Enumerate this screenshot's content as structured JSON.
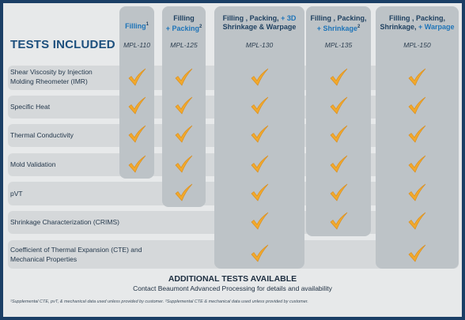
{
  "header": {
    "tests_included": "TESTS INCLUDED"
  },
  "columns": [
    {
      "plain": "Filling",
      "sup": "1",
      "accent": "",
      "accent2": "",
      "code": "MPL-110"
    },
    {
      "plain": "Filling",
      "accent": "+ Packing",
      "sup": "2",
      "accent2": "",
      "code": "MPL-125"
    },
    {
      "plain": "Filling , Packing,",
      "accent": "+ 3D",
      "plain2": "Shrinkage & Warpage",
      "code": "MPL-130"
    },
    {
      "plain": "Filling , Packing,",
      "accent": "+ Shrinkage",
      "sup": "2",
      "code": "MPL-135"
    },
    {
      "plain": "Filling , Packing,",
      "plain2": "Shrinkage,",
      "accent": "+ Warpage",
      "code": "MPL-150"
    }
  ],
  "rows": [
    {
      "label": "Shear Viscosity by Injection Molding Rheometer (IMR)"
    },
    {
      "label": "Specific Heat"
    },
    {
      "label": "Thermal Conductivity"
    },
    {
      "label": "Mold Validation"
    },
    {
      "label": "pVT"
    },
    {
      "label": "Shrinkage Characterization (CRIMS)"
    },
    {
      "label": "Coefficient of Thermal Expansion (CTE) and Mechanical Properties"
    }
  ],
  "checks": [
    [
      true,
      true,
      true,
      true,
      true
    ],
    [
      true,
      true,
      true,
      true,
      true
    ],
    [
      true,
      true,
      true,
      true,
      true
    ],
    [
      true,
      true,
      true,
      true,
      true
    ],
    [
      false,
      true,
      true,
      true,
      true
    ],
    [
      false,
      false,
      true,
      true,
      true
    ],
    [
      false,
      false,
      true,
      false,
      true
    ]
  ],
  "additional": {
    "title": "ADDITIONAL TESTS AVAILABLE",
    "subtitle": "Contact Beaumont Advanced Processing for details and availability"
  },
  "footnote": "¹Supplemental CTE, pvT, & mechanical data used unless provided by customer.  ²Supplemental CTE & mechanical data used unless provided by customer.",
  "colors": {
    "check": "#f2a92c",
    "background": "#1b3f66",
    "accent": "#1e74b8"
  },
  "icons": {
    "check": "checkmark-icon"
  }
}
